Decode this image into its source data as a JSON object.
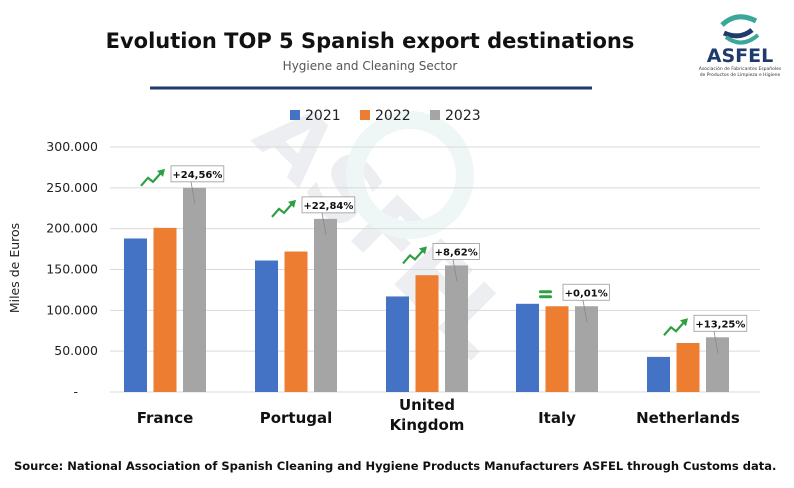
{
  "chart_data": {
    "type": "bar",
    "title": "Evolution TOP 5 Spanish export destinations",
    "subtitle": "Hygiene and Cleaning Sector",
    "ylabel": "Miles de Euros",
    "xlabel": "",
    "ylim": [
      0,
      300000
    ],
    "yticks": [
      "-",
      "50.000",
      "100.000",
      "150.000",
      "200.000",
      "250.000",
      "300.000"
    ],
    "grid": true,
    "legend": "top",
    "categories": [
      [
        "France"
      ],
      [
        "Portugal"
      ],
      [
        "United",
        "Kingdom"
      ],
      [
        "Italy"
      ],
      [
        "Netherlands"
      ]
    ],
    "series": [
      {
        "name": "2021",
        "color": "#4472C4",
        "values": [
          188000,
          161000,
          117000,
          108000,
          43000
        ]
      },
      {
        "name": "2022",
        "color": "#ED7D31",
        "values": [
          201000,
          172000,
          143000,
          105000,
          60000
        ]
      },
      {
        "name": "2023",
        "color": "#A5A5A5",
        "values": [
          250000,
          212000,
          155000,
          105000,
          67000
        ]
      }
    ],
    "annotations": [
      {
        "label": "+24,56%",
        "trend": "up"
      },
      {
        "label": "+22,84%",
        "trend": "up"
      },
      {
        "label": "+8,62%",
        "trend": "up"
      },
      {
        "label": "+0,01%",
        "trend": "equal"
      },
      {
        "label": "+13,25%",
        "trend": "up"
      }
    ],
    "trend_color": "#2EA043",
    "source": "Source: National Association of Spanish Cleaning and Hygiene Products Manufacturers ASFEL through Customs data."
  },
  "logo": {
    "name": "ASFEL",
    "tagline": "Asociación de Fabricantes Españoles de Productos de Limpieza e Higiene",
    "color": "#1F3A6B",
    "accent": "#3AA79A"
  },
  "watermark": "ASFEL Asociación de Fabricantes Españoles de Productos de Limpieza e Higiene"
}
